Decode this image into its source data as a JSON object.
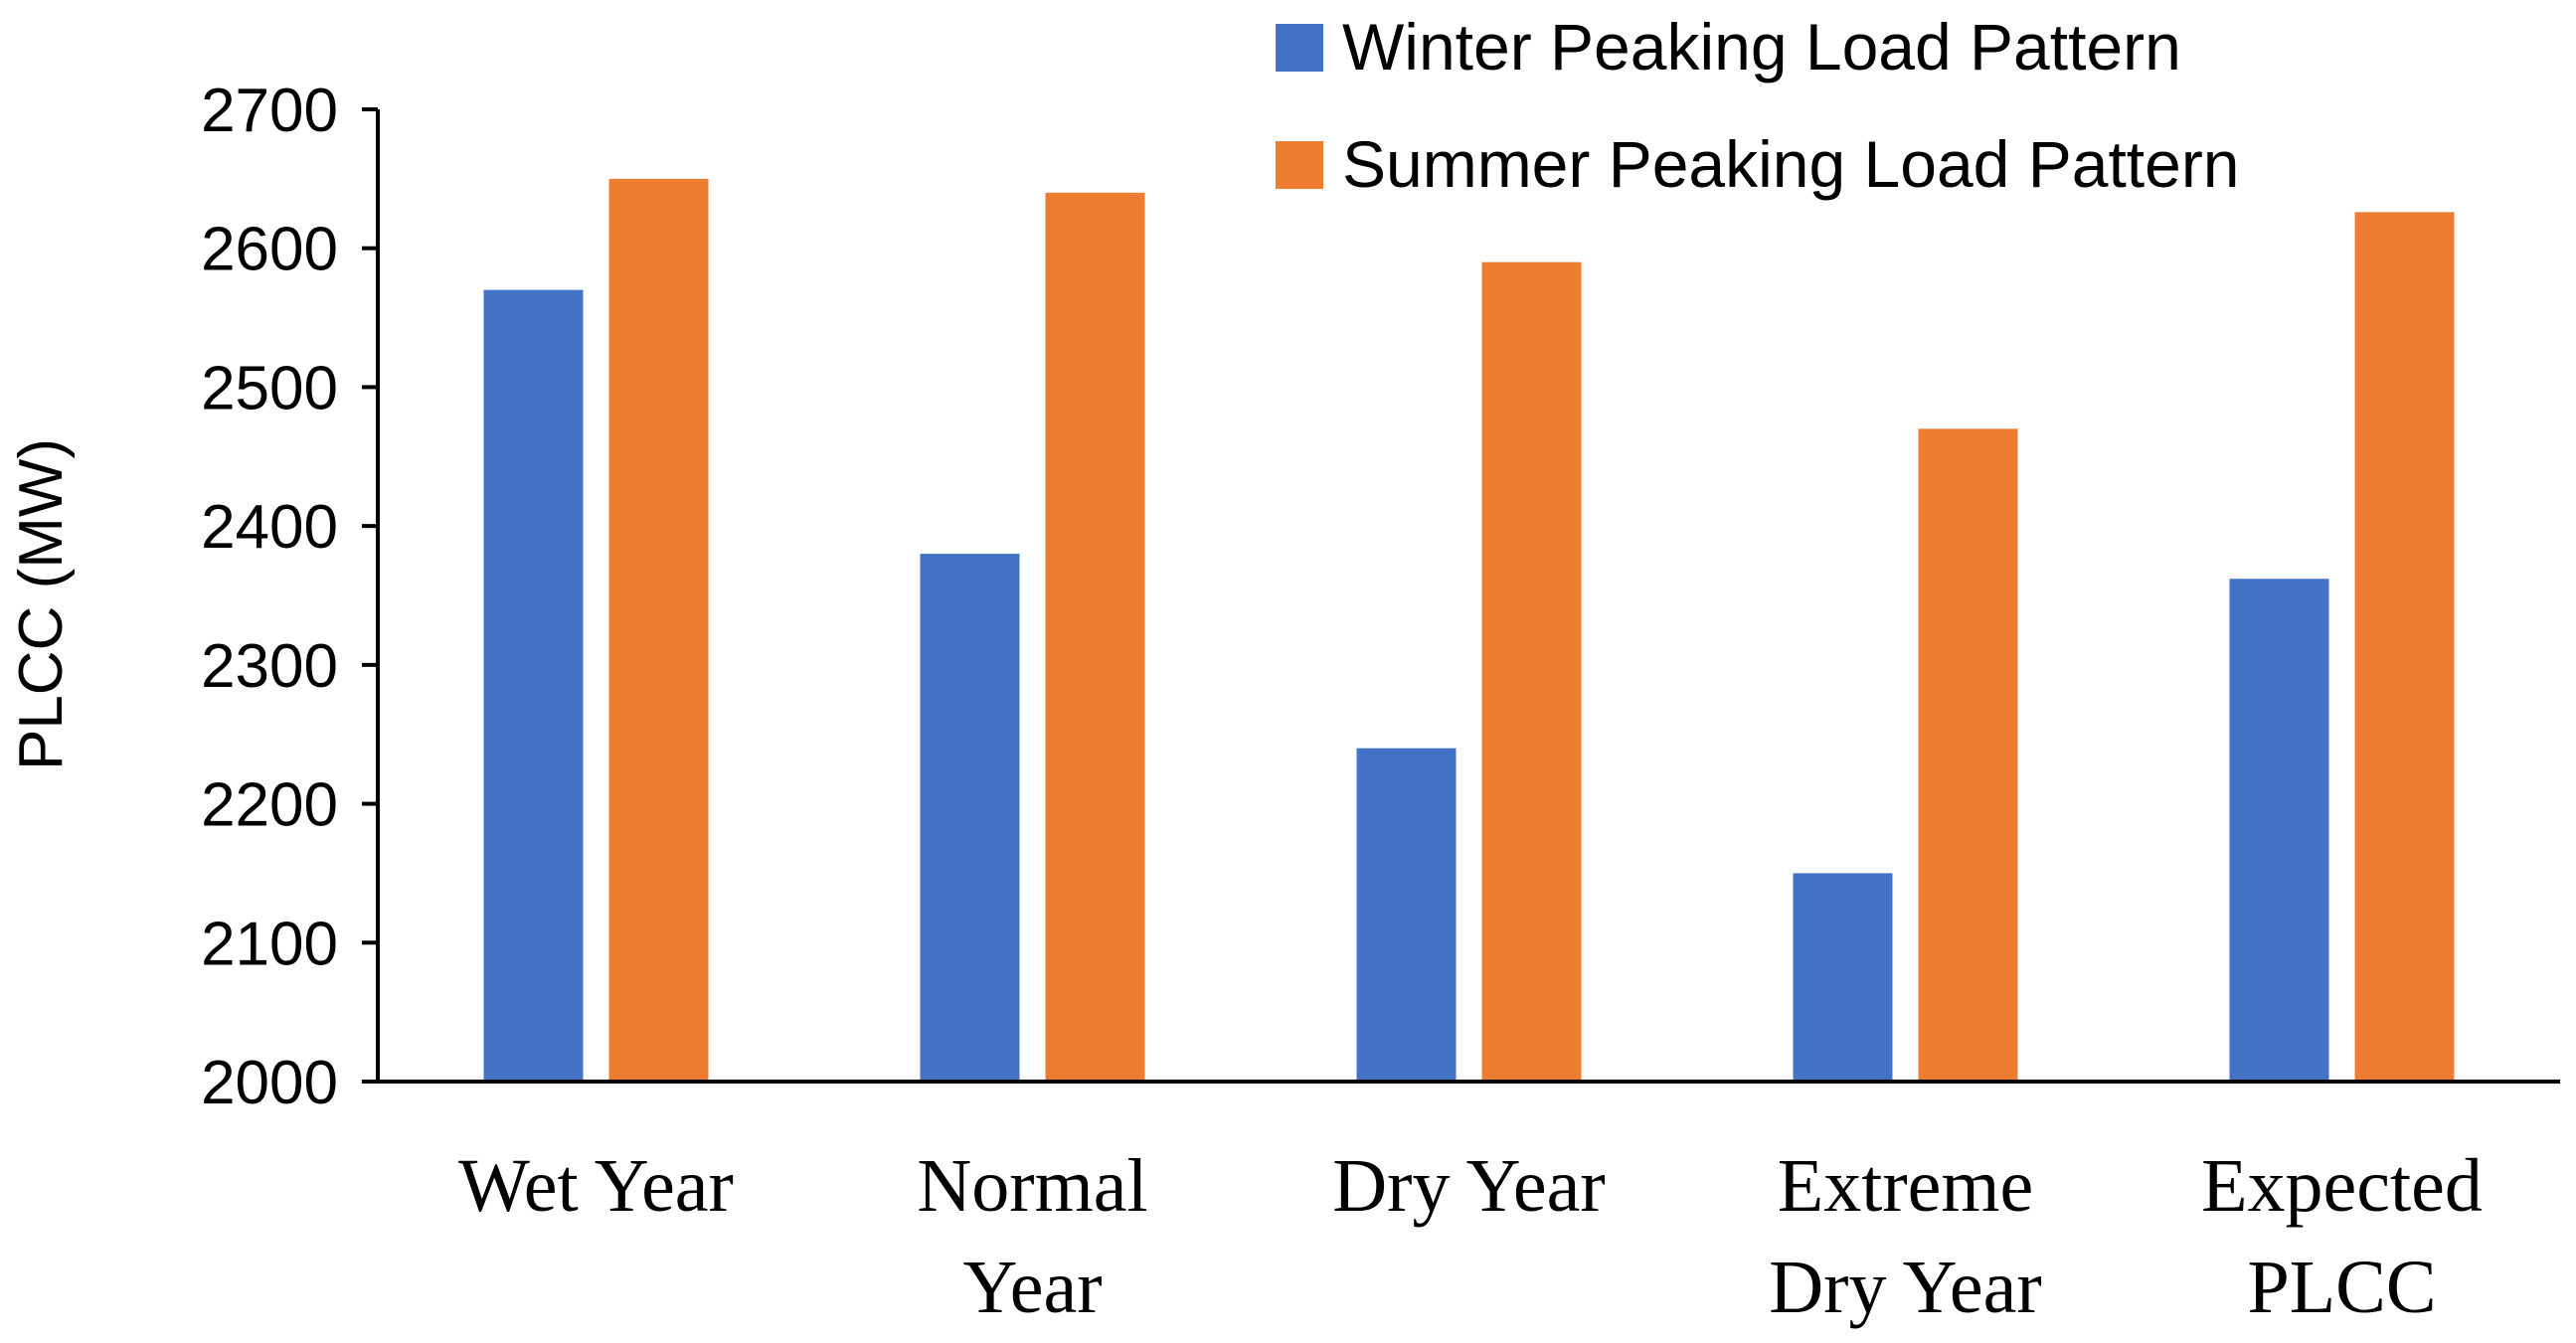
{
  "chart_data": {
    "type": "bar",
    "title": "",
    "xlabel": "",
    "ylabel": "PLCC (MW)",
    "ylim": [
      2000,
      2700
    ],
    "yticks": [
      2000,
      2100,
      2200,
      2300,
      2400,
      2500,
      2600,
      2700
    ],
    "grid": false,
    "legend_position": "top-right",
    "categories": [
      [
        "Wet Year"
      ],
      [
        "Normal",
        "Year"
      ],
      [
        "Dry Year"
      ],
      [
        "Extreme",
        "Dry Year"
      ],
      [
        "Expected",
        "PLCC"
      ]
    ],
    "series": [
      {
        "name": "Winter Peaking Load Pattern",
        "color": "#4472C4",
        "values": [
          2570,
          2380,
          2240,
          2150,
          2362
        ]
      },
      {
        "name": "Summer Peaking Load Pattern",
        "color": "#ED7D31",
        "values": [
          2650,
          2640,
          2590,
          2470,
          2626
        ]
      }
    ]
  }
}
